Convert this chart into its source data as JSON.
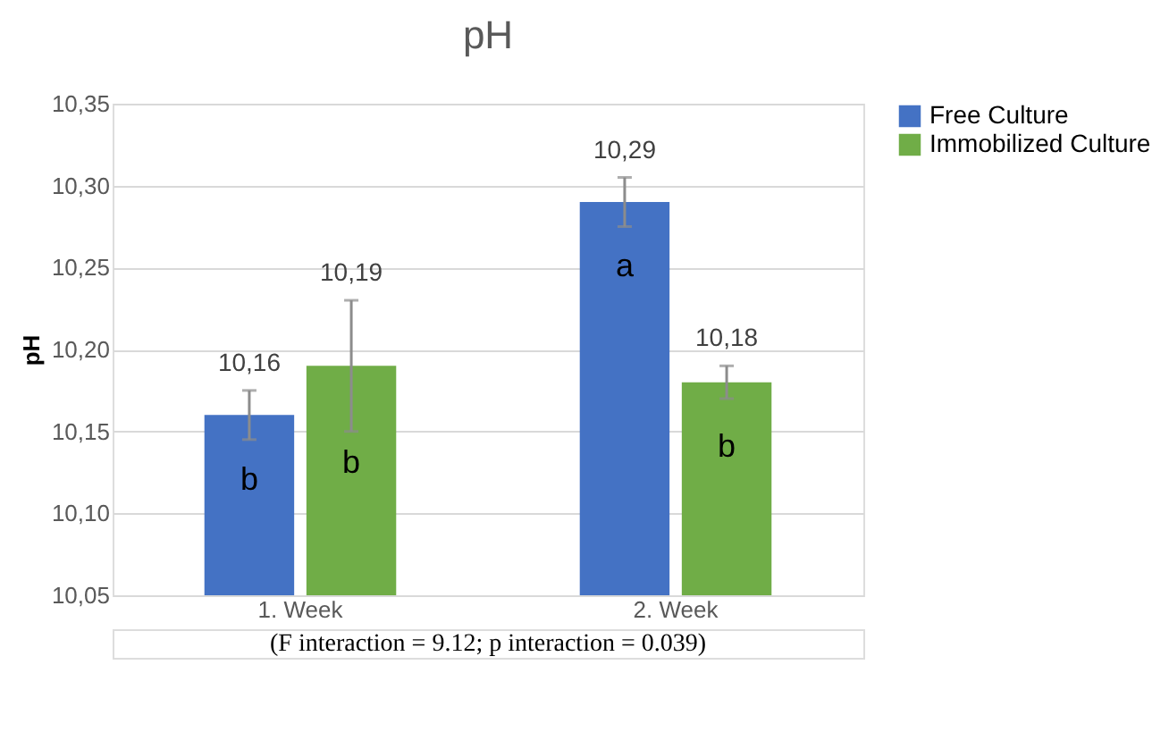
{
  "chart_data": {
    "type": "bar",
    "title": "pH",
    "ylabel": "pH",
    "categories": [
      "1. Week",
      "2. Week"
    ],
    "series": [
      {
        "name": "Free Culture",
        "color": "#4472c4",
        "values": [
          10.16,
          10.29
        ],
        "errors": [
          0.015,
          0.015
        ]
      },
      {
        "name": "Immobilized Culture",
        "color": "#70ad47",
        "values": [
          10.19,
          10.18
        ],
        "errors": [
          0.04,
          0.01
        ]
      }
    ],
    "ylim": [
      10.05,
      10.35
    ],
    "yticks": [
      {
        "value": 10.05,
        "label": "10,05"
      },
      {
        "value": 10.1,
        "label": "10,10"
      },
      {
        "value": 10.15,
        "label": "10,15"
      },
      {
        "value": 10.2,
        "label": "10,20"
      },
      {
        "value": 10.25,
        "label": "10,25"
      },
      {
        "value": 10.3,
        "label": "10,30"
      },
      {
        "value": 10.35,
        "label": "10,35"
      }
    ],
    "value_labels": [
      [
        "10,16",
        "10,29"
      ],
      [
        "10,19",
        "10,18"
      ]
    ],
    "annotations": [
      {
        "text": "b",
        "x": "1. Week",
        "y": 10.12
      },
      {
        "text": "b",
        "x": "1. Week",
        "y": 10.13
      },
      {
        "text": "a",
        "x": "2. Week",
        "y": 10.25
      },
      {
        "text": "b",
        "x": "2. Week",
        "y": 10.14
      },
      "(F interaction = 9.12; p interaction = 0.039)"
    ],
    "grid": "y",
    "legend": "right"
  }
}
